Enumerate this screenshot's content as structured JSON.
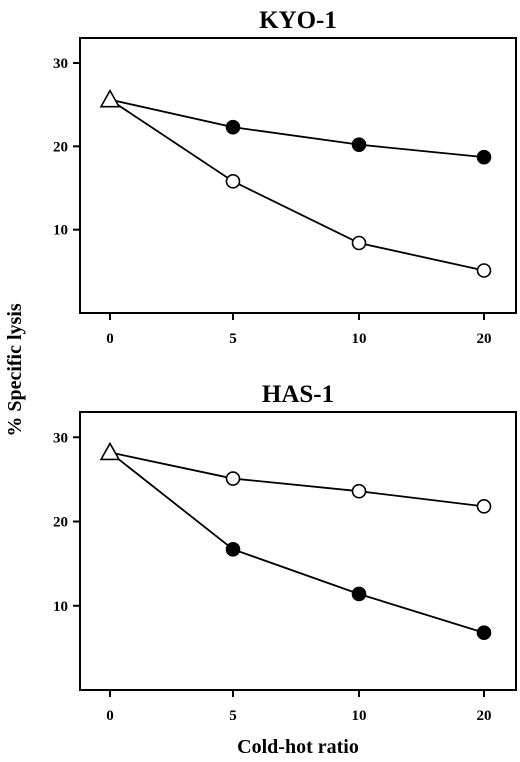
{
  "figure": {
    "ylabel": "% Specific lysis",
    "xlabel": "Cold-hot ratio"
  },
  "chart_data": [
    {
      "type": "line",
      "title": "KYO-1",
      "x_tick_labels": [
        "0",
        "5",
        "10",
        "20"
      ],
      "y_ticks": [
        10,
        20,
        30
      ],
      "ylim": [
        0,
        33
      ],
      "grid": false,
      "legend": "none",
      "series": [
        {
          "marker": "filled-circle",
          "color": "#000000",
          "values": [
            25.6,
            22.3,
            20.2,
            18.7
          ]
        },
        {
          "marker": "open-circle",
          "color": "#000000",
          "values": [
            25.6,
            15.8,
            8.4,
            5.1
          ]
        }
      ],
      "start_marker": "open-triangle"
    },
    {
      "type": "line",
      "title": "HAS-1",
      "x_tick_labels": [
        "0",
        "5",
        "10",
        "20"
      ],
      "y_ticks": [
        10,
        20,
        30
      ],
      "ylim": [
        0,
        33
      ],
      "grid": false,
      "legend": "none",
      "series": [
        {
          "marker": "open-circle",
          "color": "#000000",
          "values": [
            28.2,
            25.1,
            23.6,
            21.8
          ]
        },
        {
          "marker": "filled-circle",
          "color": "#000000",
          "values": [
            28.2,
            16.7,
            11.4,
            6.8
          ]
        }
      ],
      "start_marker": "open-triangle"
    }
  ]
}
